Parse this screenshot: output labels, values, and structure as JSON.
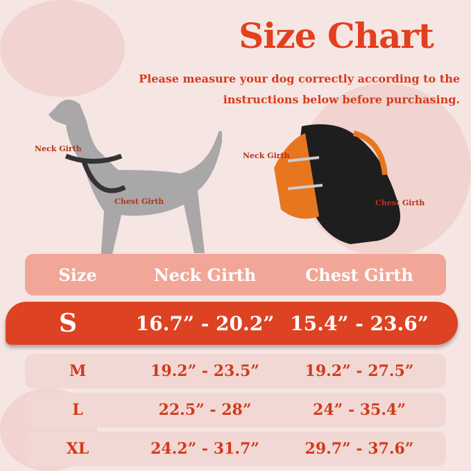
{
  "title": "Size Chart",
  "subtitle": [
    "Please measure your dog correctly according to the",
    "instructions below before purchasing."
  ],
  "dog_labels": {
    "neck": "Neck Girth",
    "chest": "Chest Girth"
  },
  "harness_labels": {
    "neck": "Neck Girth",
    "chest": "Chest Girth"
  },
  "colors": {
    "accent": "#e2401f",
    "header_row": "#f2a697",
    "row_bg": "#f1d8d4",
    "dog": "#a9a7a8"
  },
  "table": {
    "headers": [
      "Size",
      "Neck Girth",
      "Chest Girth"
    ],
    "selected_size": "S",
    "rows": [
      {
        "size": "S",
        "neck": "16.7” - 20.2”",
        "chest": "15.4” - 23.6”"
      },
      {
        "size": "M",
        "neck": "19.2” - 23.5”",
        "chest": "19.2” - 27.5”"
      },
      {
        "size": "L",
        "neck": "22.5” - 28”",
        "chest": "24” - 35.4”"
      },
      {
        "size": "XL",
        "neck": "24.2” - 31.7”",
        "chest": "29.7” - 37.6”"
      }
    ]
  }
}
